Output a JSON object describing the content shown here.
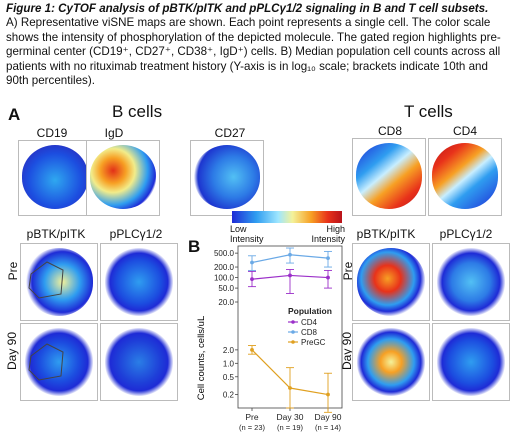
{
  "caption": {
    "title": "Figure 1: CyTOF analysis of pBTK/pITK and pPLCγ1/2 signaling in B and T cell subsets.",
    "line1": "A) Representative viSNE maps are shown. Each point represents a single cell. The color scale",
    "line2": "shows the intensity of phosphorylation of the depicted molecule. The gated region highlights pre-",
    "line3": "germinal center (CD19⁺, CD27⁺, CD38⁺, IgD⁺) cells. B) Median population cell counts across all",
    "line4": "patients with no rituximab treatment history (Y-axis is in log₁₀ scale; brackets indicate 10th and",
    "line5": "90th percentiles)."
  },
  "panel_a": {
    "letter": "A",
    "b_cells_title": "B cells",
    "t_cells_title": "T cells",
    "b_markers": [
      "CD19",
      "IgD",
      "CD27"
    ],
    "t_markers": [
      "CD8",
      "CD4"
    ],
    "b_phospho": [
      "pBTK/pITK",
      "pPLCγ1/2"
    ],
    "t_phospho": [
      "pBTK/pITK",
      "pPLCγ1/2"
    ],
    "rows": [
      "Pre",
      "Day 90"
    ]
  },
  "color_scale": {
    "low": "Low\nIntensity",
    "low_line1": "Low",
    "low_line2": "Intensity",
    "high_line1": "High",
    "high_line2": "Intensity",
    "colors": [
      "#1e2bd6",
      "#2f9df0",
      "#9ee6ff",
      "#f4f29a",
      "#f7a024",
      "#e8321a",
      "#b8121a"
    ]
  },
  "panel_b": {
    "letter": "B",
    "ylabel": "Cell counts, cells/uL",
    "legend_title": "Population",
    "yticks": [
      "500.0",
      "200.0",
      "100.0",
      "50.0",
      "20.0",
      "2.0",
      "1.0",
      "0.5",
      "0.2"
    ],
    "xticks": [
      {
        "label": "Pre",
        "n": "(n = 23)"
      },
      {
        "label": "Day 30",
        "n": "(n = 19)"
      },
      {
        "label": "Day 90",
        "n": "(n = 14)"
      }
    ]
  },
  "chart_data": {
    "type": "line",
    "title": "",
    "xlabel": "",
    "ylabel": "Cell counts, cells/uL",
    "y_scale": "log",
    "categories": [
      "Pre",
      "Day 30",
      "Day 90"
    ],
    "series": [
      {
        "name": "CD4",
        "color": "#9b2fc9",
        "values": [
          90,
          115,
          100
        ],
        "p10": [
          55,
          35,
          50
        ],
        "p90": [
          150,
          170,
          160
        ]
      },
      {
        "name": "CD8",
        "color": "#6aa9e6",
        "values": [
          270,
          450,
          360
        ],
        "p10": [
          160,
          260,
          200
        ],
        "p90": [
          420,
          700,
          560
        ]
      },
      {
        "name": "PreGC",
        "color": "#e0a020",
        "values": [
          2.0,
          0.28,
          0.2
        ],
        "p10": [
          1.6,
          0.1,
          0.08
        ],
        "p90": [
          2.5,
          0.8,
          0.6
        ]
      }
    ],
    "legend": "right"
  }
}
